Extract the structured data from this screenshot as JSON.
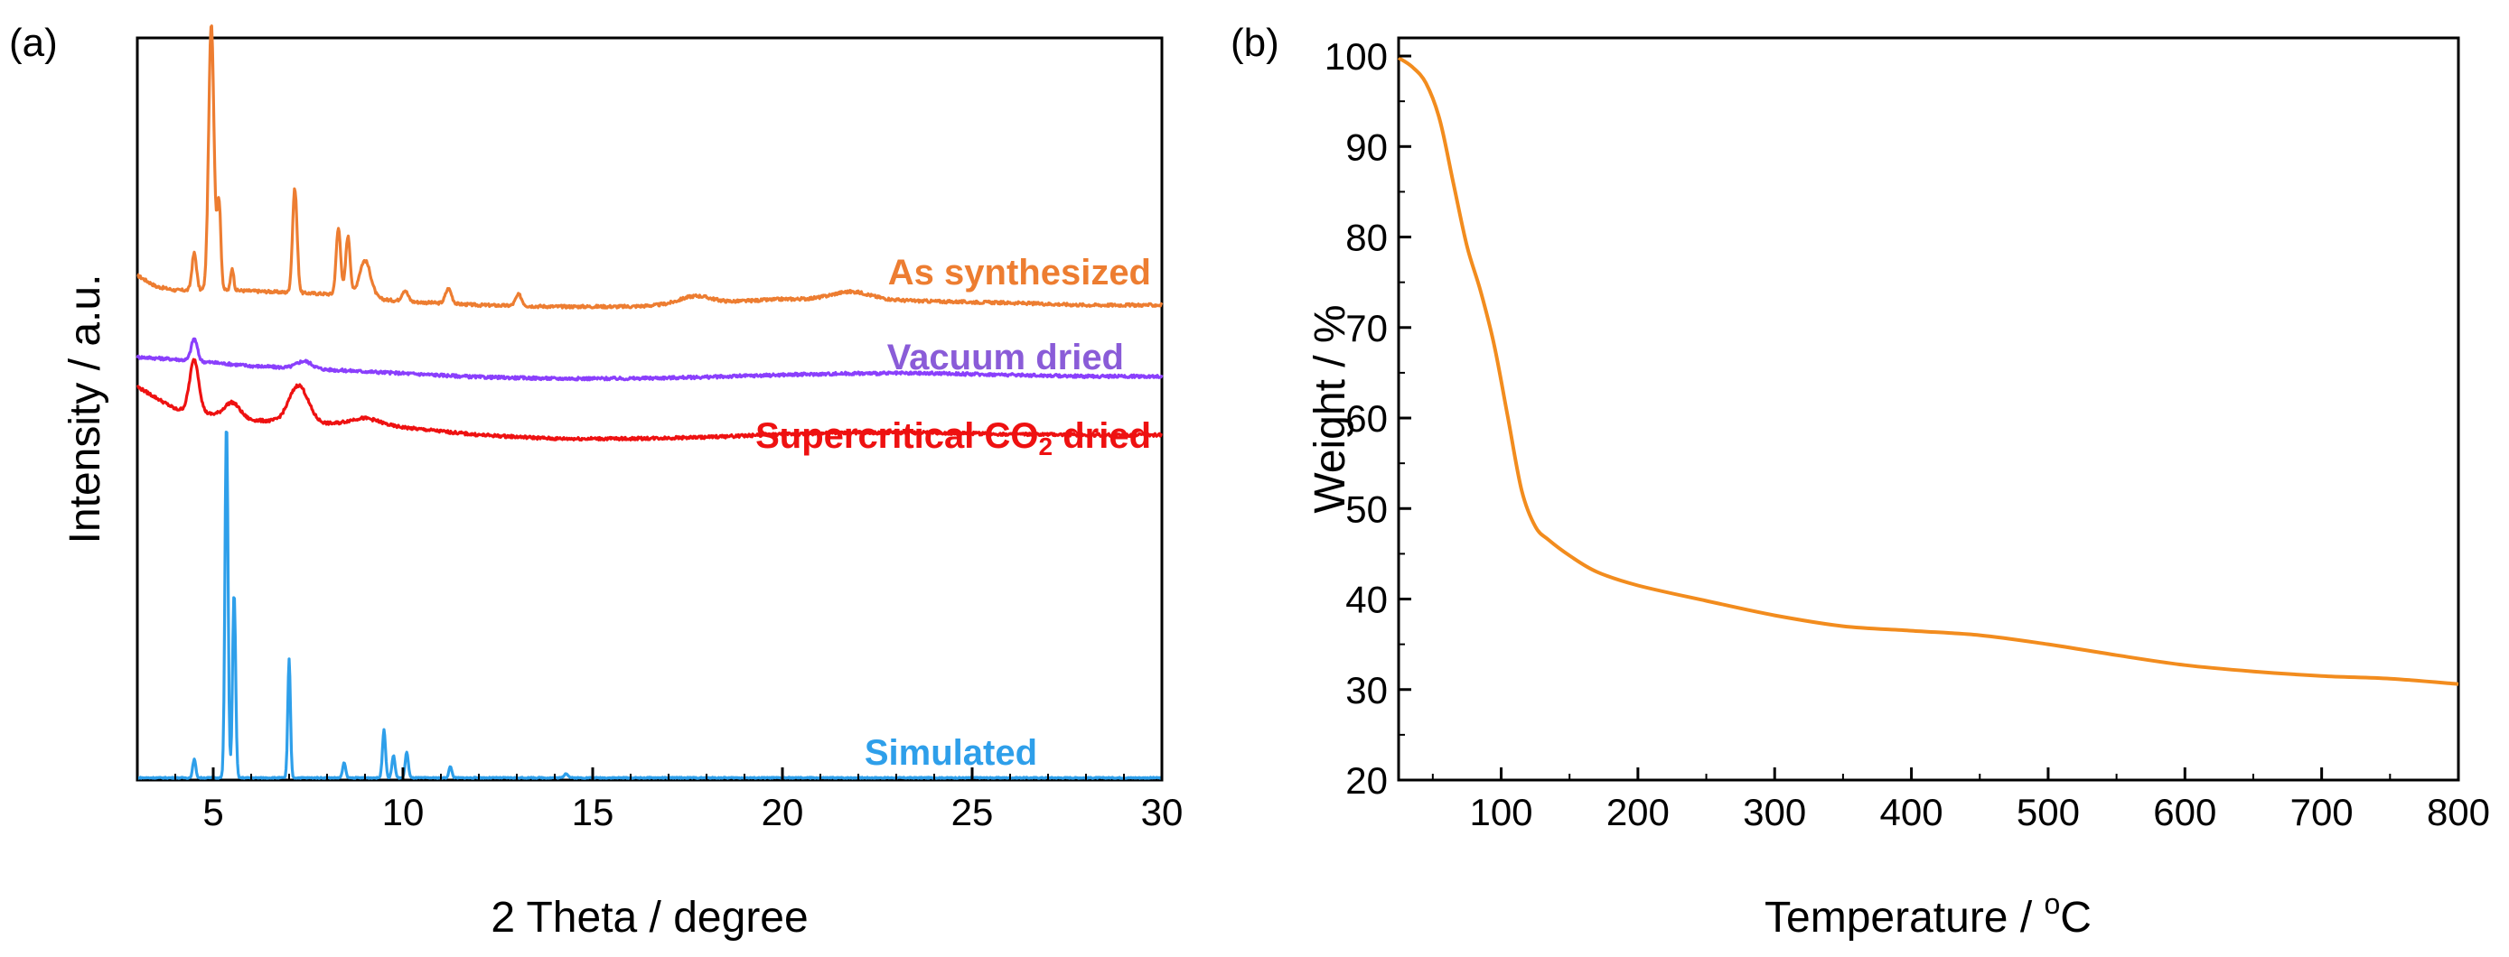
{
  "chart_data": [
    {
      "type": "line",
      "panel_label": "(a)",
      "title": "",
      "xlabel": "2 Theta / degree",
      "ylabel": "Intensity / a.u.",
      "xlim": [
        3,
        30
      ],
      "ylim": [
        0,
        1
      ],
      "xticks": [
        5,
        10,
        15,
        20,
        25,
        30
      ],
      "grid": false,
      "legend": "inline labels",
      "series": [
        {
          "name": "As synthesized",
          "label": "As synthesized",
          "color": "#ED7D31",
          "baseline": [
            [
              3.0,
              0.68
            ],
            [
              3.5,
              0.665
            ],
            [
              4.0,
              0.66
            ],
            [
              5.5,
              0.66
            ],
            [
              8.0,
              0.655
            ],
            [
              10.0,
              0.645
            ],
            [
              12.0,
              0.64
            ],
            [
              14.0,
              0.638
            ],
            [
              16.0,
              0.638
            ],
            [
              18.0,
              0.643
            ],
            [
              20.0,
              0.648
            ],
            [
              22.0,
              0.648
            ],
            [
              24.0,
              0.645
            ],
            [
              26.0,
              0.643
            ],
            [
              28.0,
              0.64
            ],
            [
              30.0,
              0.64
            ]
          ],
          "peaks": [
            [
              4.5,
              0.05,
              0.06
            ],
            [
              4.95,
              0.36,
              0.07
            ],
            [
              5.15,
              0.12,
              0.05
            ],
            [
              5.5,
              0.03,
              0.04
            ],
            [
              7.15,
              0.14,
              0.06
            ],
            [
              8.3,
              0.09,
              0.06
            ],
            [
              8.55,
              0.08,
              0.06
            ],
            [
              9.0,
              0.05,
              0.15
            ],
            [
              10.05,
              0.015,
              0.08
            ],
            [
              11.2,
              0.02,
              0.08
            ],
            [
              13.05,
              0.015,
              0.08
            ],
            [
              17.7,
              0.01,
              0.4
            ],
            [
              21.8,
              0.01,
              0.5
            ]
          ]
        },
        {
          "name": "Vacuum dried",
          "label": "Vacuum dried",
          "color": "#8A3FFC",
          "baseline": [
            [
              3.0,
              0.57
            ],
            [
              4.0,
              0.567
            ],
            [
              6.0,
              0.558
            ],
            [
              8.0,
              0.553
            ],
            [
              10.0,
              0.548
            ],
            [
              12.0,
              0.543
            ],
            [
              14.0,
              0.541
            ],
            [
              16.0,
              0.541
            ],
            [
              18.0,
              0.543
            ],
            [
              20.0,
              0.546
            ],
            [
              22.0,
              0.548
            ],
            [
              24.0,
              0.548
            ],
            [
              26.0,
              0.546
            ],
            [
              28.0,
              0.544
            ],
            [
              30.0,
              0.544
            ]
          ],
          "peaks": [
            [
              4.5,
              0.03,
              0.08
            ],
            [
              7.4,
              0.01,
              0.2
            ]
          ]
        },
        {
          "name": "Supercritical CO2 dried",
          "label": "Supercritical CO",
          "label_sub": "2",
          "label_tail": " dried",
          "color": "#EE1111",
          "baseline": [
            [
              3.0,
              0.53
            ],
            [
              4.0,
              0.5
            ],
            [
              6.0,
              0.485
            ],
            [
              8.0,
              0.48
            ],
            [
              10.0,
              0.475
            ],
            [
              12.0,
              0.465
            ],
            [
              14.0,
              0.46
            ],
            [
              16.0,
              0.46
            ],
            [
              18.0,
              0.462
            ],
            [
              20.0,
              0.466
            ],
            [
              22.0,
              0.468
            ],
            [
              24.0,
              0.468
            ],
            [
              26.0,
              0.466
            ],
            [
              28.0,
              0.465
            ],
            [
              30.0,
              0.465
            ]
          ],
          "peaks": [
            [
              4.5,
              0.07,
              0.12
            ],
            [
              5.5,
              0.02,
              0.2
            ],
            [
              7.25,
              0.05,
              0.25
            ],
            [
              9.0,
              0.01,
              0.4
            ]
          ]
        },
        {
          "name": "Simulated",
          "label": "Simulated",
          "color": "#2E9FEA",
          "baseline": [
            [
              3.0,
              0.003
            ],
            [
              30.0,
              0.003
            ]
          ],
          "peaks": [
            [
              4.5,
              0.025,
              0.04
            ],
            [
              5.35,
              0.48,
              0.04
            ],
            [
              5.55,
              0.25,
              0.04
            ],
            [
              7.0,
              0.16,
              0.035
            ],
            [
              8.45,
              0.02,
              0.04
            ],
            [
              9.5,
              0.065,
              0.04
            ],
            [
              9.75,
              0.03,
              0.04
            ],
            [
              10.1,
              0.035,
              0.04
            ],
            [
              11.25,
              0.015,
              0.04
            ],
            [
              14.3,
              0.006,
              0.05
            ]
          ]
        }
      ]
    },
    {
      "type": "line",
      "panel_label": "(b)",
      "title": "",
      "xlabel": "Temperature / ",
      "xlabel_sup": "o",
      "xlabel_tail": "C",
      "ylabel": "Weight / %",
      "xlim": [
        25,
        800
      ],
      "ylim": [
        20,
        102
      ],
      "xticks": [
        100,
        200,
        300,
        400,
        500,
        600,
        700,
        800
      ],
      "yticks": [
        20,
        30,
        40,
        50,
        60,
        70,
        80,
        90,
        100
      ],
      "grid": false,
      "series": [
        {
          "name": "Weight",
          "color": "#F28C1E",
          "x": [
            25,
            35,
            45,
            55,
            65,
            75,
            85,
            95,
            105,
            115,
            125,
            135,
            150,
            170,
            200,
            250,
            300,
            350,
            400,
            450,
            500,
            550,
            600,
            650,
            700,
            750,
            800
          ],
          "y": [
            99.8,
            98.8,
            97.0,
            93.0,
            86.0,
            79.0,
            74.0,
            68.0,
            60.0,
            52.0,
            48.0,
            46.5,
            44.8,
            43.0,
            41.5,
            39.8,
            38.2,
            37.0,
            36.5,
            36.0,
            35.0,
            33.8,
            32.7,
            32.0,
            31.5,
            31.2,
            30.6
          ]
        }
      ]
    }
  ]
}
